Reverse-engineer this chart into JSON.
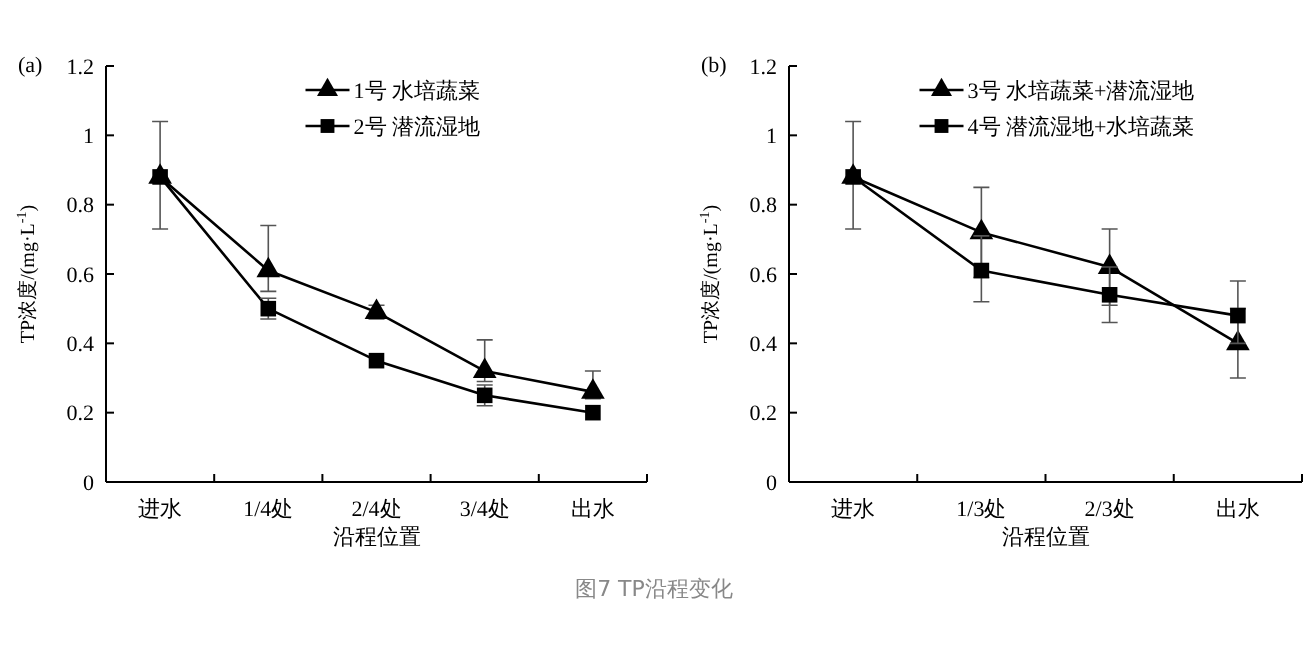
{
  "chart_data": [
    {
      "type": "line",
      "title": "(a)",
      "xlabel": "沿程位置",
      "ylabel": "TP浓度/(mg·L$^{-1}$)",
      "categories": [
        "进水",
        "1/4处",
        "2/4处",
        "3/4处",
        "出水"
      ],
      "ylim": [
        0,
        1.2
      ],
      "yticks": [
        0,
        0.2,
        0.4,
        0.6,
        0.8,
        1,
        1.2
      ],
      "legend": "top",
      "grid": false,
      "annotations": [
        "图7 TP沿程变化"
      ],
      "series": [
        {
          "name": "1号 水培蔬菜",
          "color": "#000000",
          "marker": "triangle",
          "values": [
            0.88,
            0.61,
            0.49,
            0.32,
            0.26
          ],
          "errors": [
            [
              0.73,
              1.04
            ],
            [
              0.55,
              0.74
            ],
            [
              0.47,
              0.51
            ],
            [
              0.29,
              0.41
            ],
            [
              0.24,
              0.32
            ]
          ]
        },
        {
          "name": "2号 潜流湿地",
          "color": "#000000",
          "marker": "square",
          "values": [
            0.88,
            0.5,
            0.35,
            0.25,
            0.2
          ],
          "errors": [
            null,
            [
              0.47,
              0.53
            ],
            null,
            [
              0.22,
              0.28
            ],
            null
          ]
        }
      ]
    },
    {
      "type": "line",
      "title": "(b)",
      "xlabel": "沿程位置",
      "ylabel": "TP浓度/(mg·L$^{-1}$)",
      "categories": [
        "进水",
        "1/3处",
        "2/3处",
        "出水"
      ],
      "ylim": [
        0,
        1.2
      ],
      "yticks": [
        0,
        0.2,
        0.4,
        0.6,
        0.8,
        1,
        1.2
      ],
      "legend": "top",
      "grid": false,
      "series": [
        {
          "name": "3号 水培蔬菜+潜流湿地",
          "color": "#000000",
          "marker": "triangle",
          "values": [
            0.88,
            0.72,
            0.62,
            0.4
          ],
          "errors": [
            [
              0.73,
              1.04
            ],
            [
              0.59,
              0.85
            ],
            [
              0.51,
              0.73
            ],
            [
              0.3,
              0.5
            ]
          ]
        },
        {
          "name": "4号 潜流湿地+水培蔬菜",
          "color": "#000000",
          "marker": "square",
          "values": [
            0.88,
            0.61,
            0.54,
            0.48
          ],
          "errors": [
            null,
            [
              0.52,
              0.71
            ],
            [
              0.46,
              0.62
            ],
            [
              0.4,
              0.58
            ]
          ]
        }
      ]
    }
  ]
}
